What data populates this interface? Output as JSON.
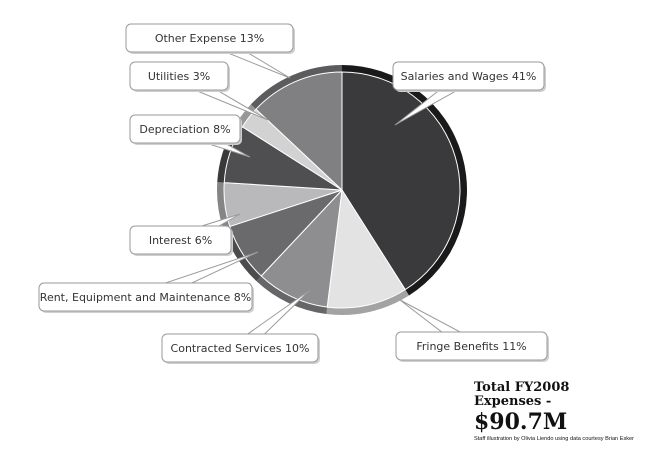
{
  "chart_data": {
    "type": "pie",
    "title": "",
    "slices": [
      {
        "label": "Salaries and Wages 41%",
        "value": 41,
        "color": "#3a3a3c"
      },
      {
        "label": "Fringe Benefits 11%",
        "value": 11,
        "color": "#e3e3e3"
      },
      {
        "label": "Contracted Services 10%",
        "value": 10,
        "color": "#8e8e90"
      },
      {
        "label": "Rent, Equipment and Maintenance 8%",
        "value": 8,
        "color": "#6a6a6c"
      },
      {
        "label": "Interest 6%",
        "value": 6,
        "color": "#b9b9bb"
      },
      {
        "label": "Depreciation 8%",
        "value": 8,
        "color": "#4f4f51"
      },
      {
        "label": "Utilities 3%",
        "value": 3,
        "color": "#d2d2d2"
      },
      {
        "label": "Other Expense 13%",
        "value": 13,
        "color": "#808082"
      }
    ],
    "edge_color": "#1a1a1a",
    "callout_border_color": "#9a9a9a"
  },
  "caption": {
    "line1": "Total FY2008",
    "line2": "Expenses -",
    "total": "$90.7M",
    "credit": "Staff illustration by Olivia Liendo using data courtesy Brian Esker"
  }
}
